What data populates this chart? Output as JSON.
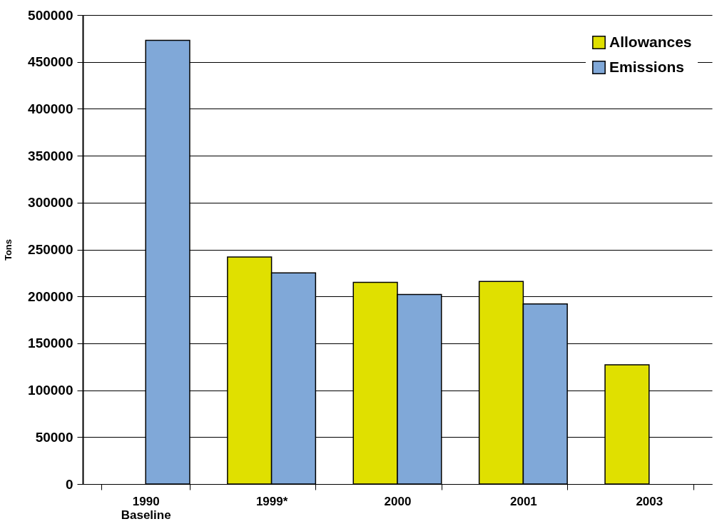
{
  "chart_data": {
    "type": "bar",
    "ylabel": "Tons",
    "categories": [
      "1990\nBaseline",
      "1999*",
      "2000",
      "2001",
      "2003"
    ],
    "series": [
      {
        "name": "Allowances",
        "color": "#e0e000",
        "values": [
          null,
          242000,
          215000,
          216000,
          127000
        ]
      },
      {
        "name": "Emissions",
        "color": "#80a8d8",
        "values": [
          473000,
          225000,
          202000,
          192000,
          null
        ]
      }
    ],
    "ylim": [
      0,
      500000
    ],
    "yticks": [
      0,
      50000,
      100000,
      150000,
      200000,
      250000,
      300000,
      350000,
      400000,
      450000,
      500000
    ],
    "grid": "y",
    "legend": "top right"
  }
}
